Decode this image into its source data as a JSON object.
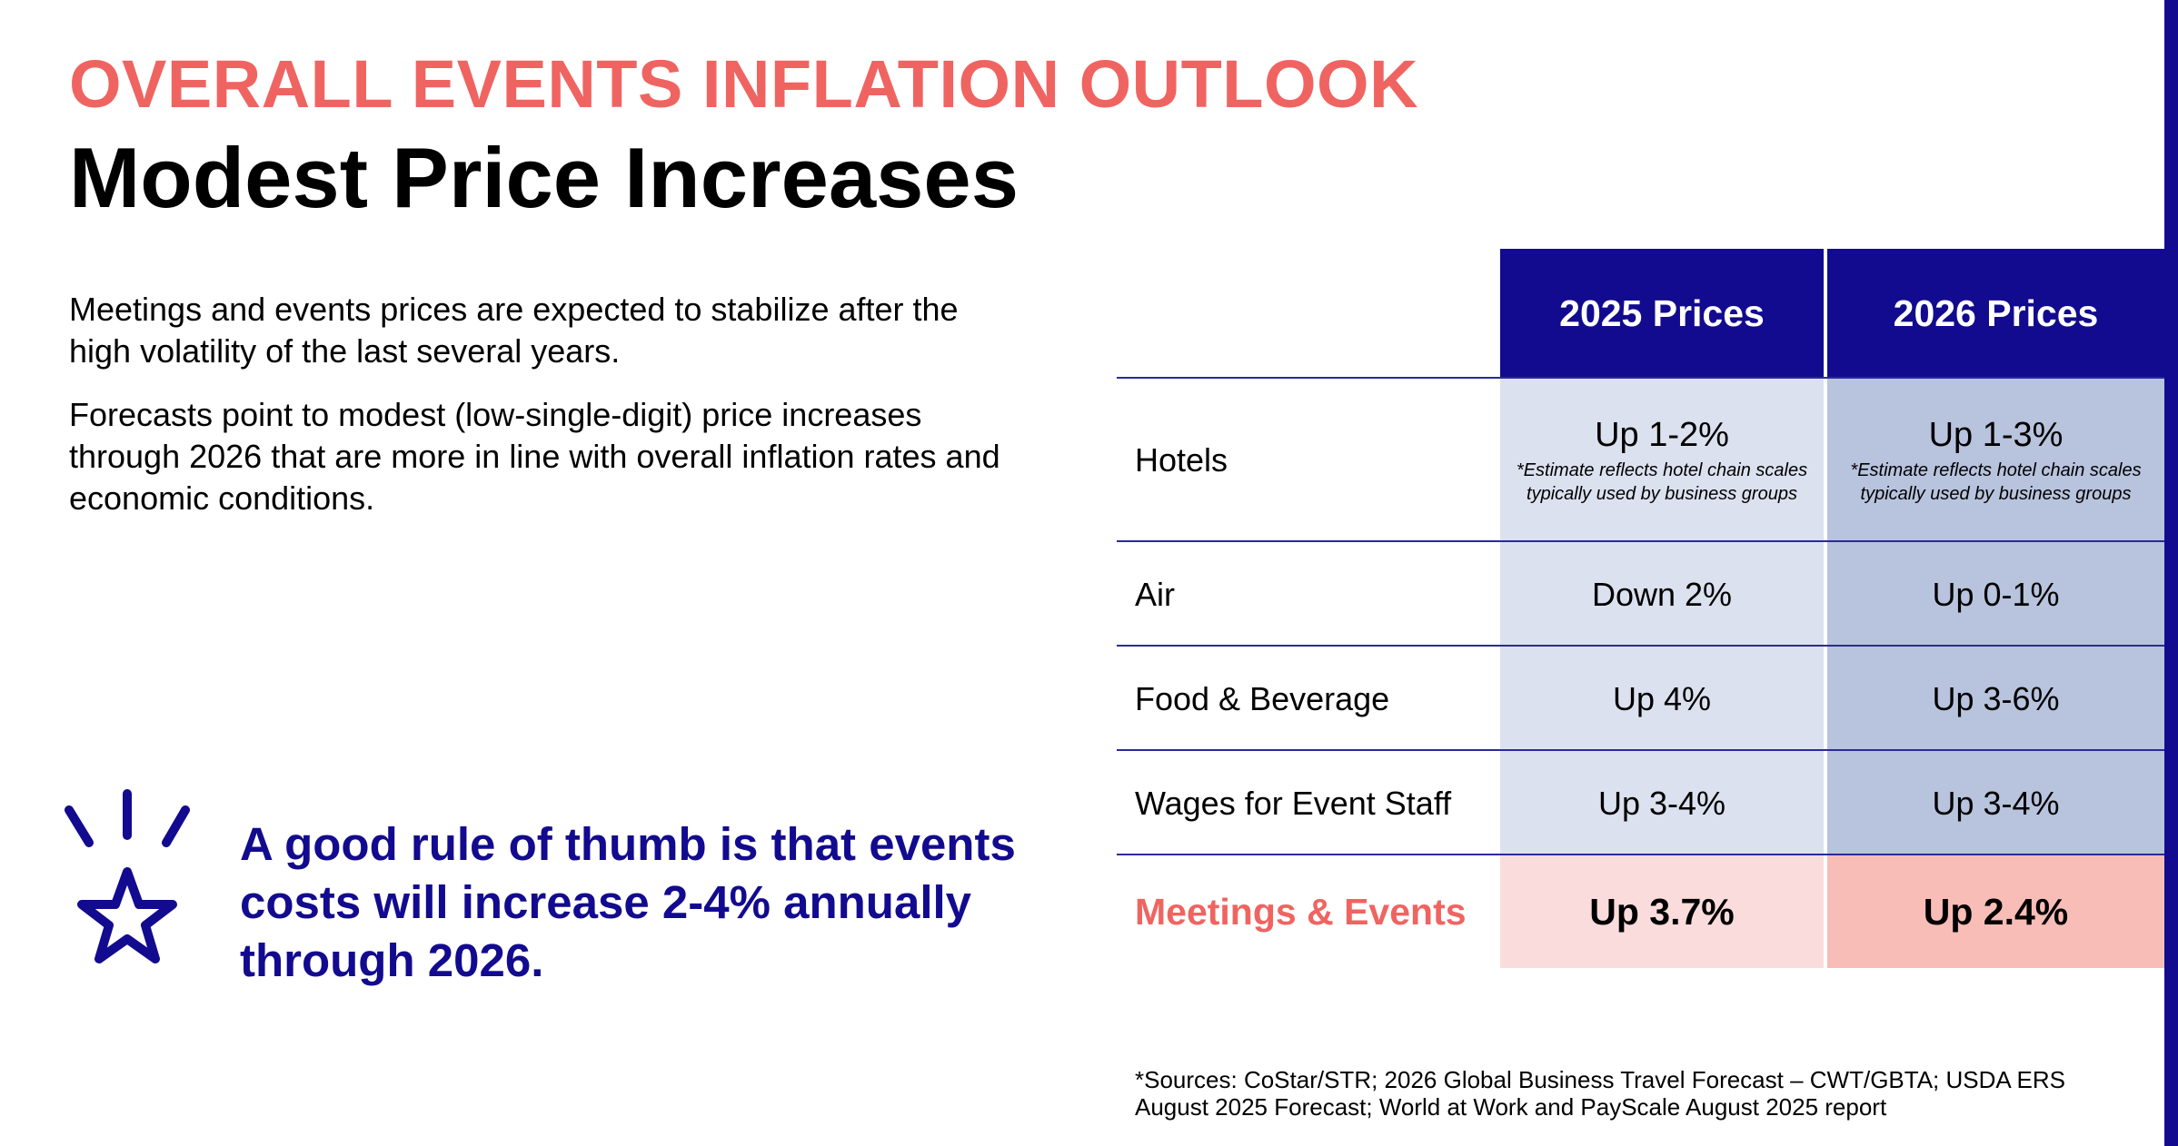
{
  "kicker": "OVERALL EVENTS INFLATION OUTLOOK",
  "title": "Modest Price Increases",
  "intro": [
    "Meetings and events prices are expected to stabilize after the high volatility of the last several years.",
    "Forecasts point to modest (low-single-digit) price increases through 2026 that are more in line with overall inflation rates and economic conditions."
  ],
  "callout": {
    "icon": "star-burst-icon",
    "text": "A good rule of thumb is that events costs will increase 2-4% annually through 2026."
  },
  "table": {
    "headers": [
      "2025 Prices",
      "2026 Prices"
    ],
    "rows": [
      {
        "label": "Hotels",
        "v2025": "Up 1-2%",
        "note2025": "*Estimate reflects hotel chain scales typically used by business groups",
        "v2026": "Up 1-3%",
        "note2026": "*Estimate reflects hotel chain scales typically used by business groups"
      },
      {
        "label": "Air",
        "v2025": "Down 2%",
        "v2026": "Up 0-1%"
      },
      {
        "label": "Food & Beverage",
        "v2025": "Up 4%",
        "v2026": "Up 3-6%"
      },
      {
        "label": "Wages for Event Staff",
        "v2025": "Up 3-4%",
        "v2026": "Up 3-4%"
      }
    ],
    "total": {
      "label": "Meetings & Events",
      "v2025": "Up 3.7%",
      "v2026": "Up 2.4%"
    }
  },
  "sources": "*Sources: CoStar/STR; 2026 Global Business Travel Forecast – CWT/GBTA; USDA ERS August 2025 Forecast; World at Work and PayScale August 2025 report",
  "colors": {
    "accent": "#ef6461",
    "navy": "#120b8f",
    "cell2025": "#dce1ef",
    "cell2026": "#b8c3dd",
    "total2025": "#fbdcdc",
    "total2026": "#f8bdb6"
  }
}
